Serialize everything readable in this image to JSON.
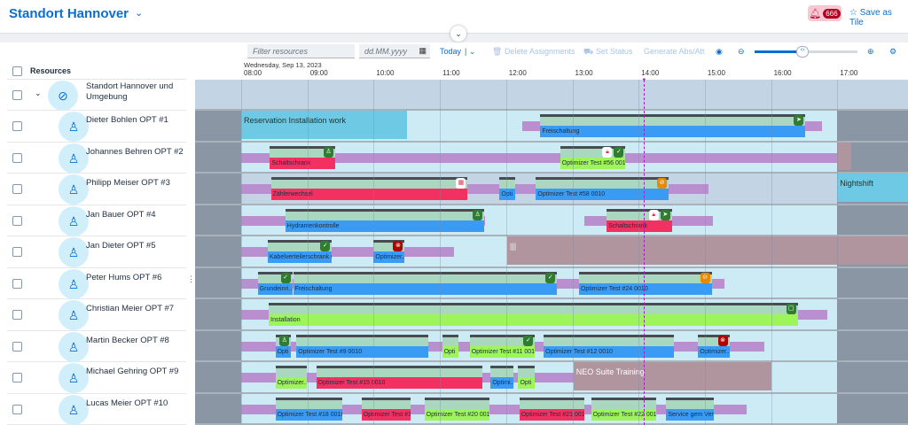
{
  "header": {
    "title": "Standort Hannover",
    "notifications": "666",
    "save_as_tile": "Save as Tile"
  },
  "toolbar": {
    "filter_placeholder": "Filter resources",
    "date_placeholder": "dd.MM.yyyy",
    "today": "Today",
    "delete": "Delete Assignments",
    "set_status": "Set Status",
    "generate": "Generate Abs/Att",
    "zoom_level_percent": 48
  },
  "resources_header": "Resources",
  "group": {
    "name": "Standort Hannover und Umgebung"
  },
  "timeline": {
    "date": "Wednesday, Sep 13, 2023",
    "hours": [
      "08:00",
      "09:00",
      "10:00",
      "11:00",
      "12:00",
      "13:00",
      "14:00",
      "15:00",
      "16:00",
      "17:00"
    ],
    "now": "14:05",
    "work_start": "08:00",
    "work_end": "17:00"
  },
  "colors": {
    "blue": "#3a9bf5",
    "red": "#f23061",
    "lime": "#9ef55a",
    "travel": "#b98fd0",
    "reservation": "#6ecae4",
    "mauve": "#b0949e"
  },
  "resources": [
    {
      "name": "Dieter Bohlen OPT #1",
      "travel": [
        [
          "12:15",
          "16:46"
        ]
      ],
      "blocks": [
        {
          "start": "08:00",
          "end": "10:30",
          "label": "Reservation Installation work",
          "color": "reservation"
        }
      ],
      "assignments": [
        {
          "start": "12:31",
          "end": "16:32",
          "label": "Freischaltung",
          "color": "blue",
          "icons": [
            "send"
          ]
        }
      ]
    },
    {
      "name": "Johannes Behren OPT #2",
      "travel": [
        [
          "08:00",
          "17:13"
        ]
      ],
      "blocks": [
        {
          "start": "17:00",
          "end": "17:13",
          "label": "",
          "color": "mauve"
        }
      ],
      "assignments": [
        {
          "start": "08:26",
          "end": "09:26",
          "label": "Schaltschrank",
          "color": "red",
          "icons": [
            "walk"
          ]
        },
        {
          "start": "12:49",
          "end": "13:49",
          "label": "Optimizer Test #56 0010",
          "color": "lime",
          "icons": [
            "lock",
            "check"
          ]
        }
      ]
    },
    {
      "name": "Philipp Meiser OPT #3",
      "selected": true,
      "travel": [
        [
          "08:00",
          "15:03"
        ]
      ],
      "blocks": [
        {
          "start": "17:00",
          "end": "18:30",
          "label": "Nightshift",
          "color": "reservation"
        }
      ],
      "assignments": [
        {
          "start": "08:27",
          "end": "11:26",
          "label": "Zählerwechsel",
          "color": "red",
          "icons": [
            "calendar"
          ]
        },
        {
          "start": "11:54",
          "end": "12:09",
          "label": "Opti",
          "color": "blue",
          "icons": []
        },
        {
          "start": "12:27",
          "end": "14:28",
          "label": "Optimizer Test #58 0010",
          "color": "blue",
          "icons": [
            "blocked"
          ]
        }
      ]
    },
    {
      "name": "Jan Bauer OPT #4",
      "travel": [
        [
          "08:00",
          "11:41"
        ],
        [
          "13:11",
          "15:07"
        ]
      ],
      "blocks": [],
      "assignments": [
        {
          "start": "08:40",
          "end": "11:41",
          "label": "Hydrantenkontrolle",
          "color": "blue",
          "icons": [
            "walk"
          ]
        },
        {
          "start": "13:31",
          "end": "14:31",
          "label": "Schaltschrank",
          "color": "red",
          "icons": [
            "lock",
            "send"
          ]
        }
      ]
    },
    {
      "name": "Jan Dieter OPT #5",
      "travel": [
        [
          "08:00",
          "11:13"
        ]
      ],
      "blocks": [
        {
          "start": "12:01",
          "end": "18:30",
          "label": "|||",
          "color": "mauve"
        }
      ],
      "assignments": [
        {
          "start": "08:24",
          "end": "09:23",
          "label": "Kabelverteilerschrank re...",
          "color": "blue",
          "icons": [
            "check"
          ]
        },
        {
          "start": "10:00",
          "end": "10:29",
          "label": "Optimizer...",
          "color": "blue",
          "icons": [
            "stop"
          ]
        }
      ]
    },
    {
      "name": "Peter Hums OPT #6",
      "travel": [
        [
          "08:00",
          "15:18"
        ]
      ],
      "blocks": [],
      "assignments": [
        {
          "start": "08:15",
          "end": "08:47",
          "label": "Grundeinri...",
          "color": "blue",
          "icons": [
            "check"
          ]
        },
        {
          "start": "08:47",
          "end": "12:47",
          "label": "Freischaltung",
          "color": "blue",
          "icons": [
            "check"
          ]
        },
        {
          "start": "13:06",
          "end": "15:07",
          "label": "Optimizer Test #24 0010",
          "color": "blue",
          "icons": [
            "blocked"
          ]
        }
      ]
    },
    {
      "name": "Christian Meier OPT #7",
      "travel": [
        [
          "08:00",
          "16:51"
        ]
      ],
      "blocks": [],
      "assignments": [
        {
          "start": "08:25",
          "end": "16:25",
          "label": "Installation",
          "color": "lime",
          "icons": [
            "square"
          ]
        }
      ]
    },
    {
      "name": "Martin Becker OPT #8",
      "travel": [
        [
          "08:00",
          "15:54"
        ]
      ],
      "blocks": [],
      "assignments": [
        {
          "start": "08:31",
          "end": "08:46",
          "label": "Opti",
          "color": "blue",
          "icons": [
            "walk"
          ]
        },
        {
          "start": "08:50",
          "end": "10:50",
          "label": "Optimizer Test #9 0010",
          "color": "blue",
          "icons": []
        },
        {
          "start": "11:02",
          "end": "11:18",
          "label": "Opti",
          "color": "lime",
          "icons": []
        },
        {
          "start": "11:27",
          "end": "12:27",
          "label": "Optimizer Test #11 0010",
          "color": "lime",
          "icons": [
            "check"
          ]
        },
        {
          "start": "12:34",
          "end": "14:33",
          "label": "Optimizer Test #12 0010",
          "color": "blue",
          "icons": []
        },
        {
          "start": "14:54",
          "end": "15:23",
          "label": "Optimizer...",
          "color": "blue",
          "icons": [
            "stop"
          ]
        }
      ]
    },
    {
      "name": "Michael Gehring OPT #9",
      "travel": [
        [
          "08:00",
          "13:01"
        ]
      ],
      "blocks": [
        {
          "start": "13:01",
          "end": "16:00",
          "label": "NEO Suite Training",
          "color": "mauve"
        }
      ],
      "assignments": [
        {
          "start": "08:31",
          "end": "09:00",
          "label": "Optimizer...",
          "color": "lime",
          "icons": []
        },
        {
          "start": "09:08",
          "end": "11:39",
          "label": "Optimizer Test #15 0010",
          "color": "red",
          "icons": []
        },
        {
          "start": "11:46",
          "end": "12:07",
          "label": "Optimi...",
          "color": "blue",
          "icons": []
        },
        {
          "start": "12:11",
          "end": "12:27",
          "label": "Opti",
          "color": "lime",
          "icons": []
        }
      ]
    },
    {
      "name": "Lucas Meier OPT #10",
      "travel": [
        [
          "08:00",
          "15:38"
        ]
      ],
      "blocks": [],
      "assignments": [
        {
          "start": "08:31",
          "end": "09:32",
          "label": "Optimizer Test #18 0010",
          "color": "blue",
          "icons": []
        },
        {
          "start": "09:49",
          "end": "10:34",
          "label": "Optimizer Test #1...",
          "color": "red",
          "icons": []
        },
        {
          "start": "10:46",
          "end": "11:46",
          "label": "Optimizer Test #20 0010",
          "color": "lime",
          "icons": []
        },
        {
          "start": "12:12",
          "end": "13:12",
          "label": "Optimizer Test #21 0010",
          "color": "red",
          "icons": []
        },
        {
          "start": "13:17",
          "end": "14:17",
          "label": "Optimizer Test #22 0010",
          "color": "lime",
          "icons": []
        },
        {
          "start": "14:25",
          "end": "15:09",
          "label": "Service gem Vertr...",
          "color": "blue",
          "icons": []
        }
      ]
    }
  ]
}
